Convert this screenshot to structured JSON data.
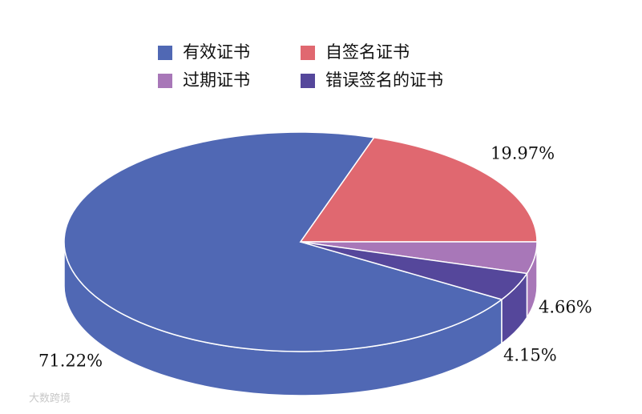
{
  "chart_data": {
    "type": "pie",
    "categories": [
      "有效证书",
      "自签名证书",
      "过期证书",
      "错误签名的证书"
    ],
    "values": [
      71.22,
      19.97,
      4.66,
      4.15
    ],
    "value_labels": [
      "71.22%",
      "19.97%",
      "4.66%",
      "4.15%"
    ],
    "colors": [
      "#5068b4",
      "#e06870",
      "#a877b8",
      "#55479b"
    ],
    "watermark": "大数跨境"
  }
}
